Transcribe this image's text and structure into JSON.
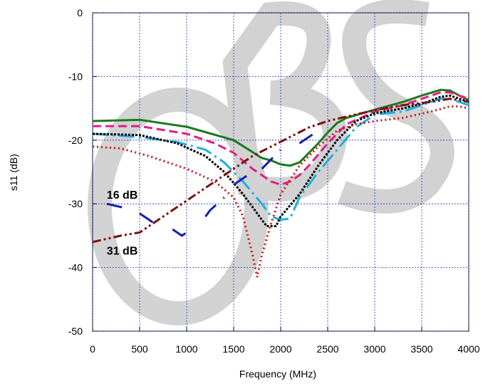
{
  "chart_data": {
    "type": "line",
    "x_label": "Frequency (MHz)",
    "y_label": "s11 (dB)",
    "xlim": [
      0,
      4000
    ],
    "ylim": [
      -50,
      0
    ],
    "xticks": [
      0,
      500,
      1000,
      1500,
      2000,
      2500,
      3000,
      3500,
      4000
    ],
    "yticks": [
      0,
      -10,
      -20,
      -30,
      -40,
      -50
    ],
    "grid": true,
    "annotations": [
      {
        "text": "16 dB",
        "x": 150,
        "y": -29.2
      },
      {
        "text": "31 dB",
        "x": 150,
        "y": -38
      }
    ],
    "series": [
      {
        "color": "#1a7a1a",
        "dash": "solid",
        "x": [
          0,
          500,
          1000,
          1500,
          1800,
          1900,
          2000,
          2100,
          2200,
          2300,
          2400,
          2500,
          2600,
          2700,
          3000,
          3300,
          3500,
          3700,
          3800,
          3900,
          4000
        ],
        "values": [
          -17,
          -16.8,
          -17.9,
          -20,
          -22.8,
          -23.2,
          -23.8,
          -24,
          -23.5,
          -22,
          -20.5,
          -18.8,
          -17.3,
          -16.5,
          -15.2,
          -14,
          -13,
          -12.1,
          -12.2,
          -13,
          -13.7
        ]
      },
      {
        "color": "#e0207f",
        "dash": "dashed",
        "x": [
          0,
          500,
          1000,
          1300,
          1500,
          1700,
          1900,
          2000,
          2100,
          2200,
          2300,
          2500,
          2700,
          3000,
          3300,
          3500,
          3700,
          3800,
          4000
        ],
        "values": [
          -17.8,
          -17.8,
          -19,
          -20.5,
          -22,
          -24.5,
          -26.5,
          -27,
          -26.5,
          -25.5,
          -24,
          -20.5,
          -17.5,
          -15.5,
          -14.5,
          -13.5,
          -12.5,
          -12.5,
          -13.5
        ]
      },
      {
        "color": "#1ab0e0",
        "dash": "dashdot",
        "x": [
          0,
          500,
          900,
          1200,
          1400,
          1600,
          1800,
          1900,
          2000,
          2100,
          2200,
          2400,
          2600,
          2800,
          3000,
          3300,
          3500,
          3700,
          3800,
          4000
        ],
        "values": [
          -19,
          -19.5,
          -20.3,
          -21.5,
          -23.5,
          -26.5,
          -30,
          -32,
          -32.5,
          -32.3,
          -29,
          -25,
          -21.5,
          -18,
          -16,
          -15.5,
          -14.5,
          -13.5,
          -13.5,
          -14.5
        ]
      },
      {
        "color": "#000000",
        "dash": "dotted",
        "x": [
          0,
          500,
          900,
          1200,
          1400,
          1600,
          1800,
          1850,
          1950,
          2000,
          2200,
          2400,
          2600,
          2800,
          3000,
          3300,
          3500,
          3700,
          3800,
          4000
        ],
        "values": [
          -19,
          -19.2,
          -20.5,
          -22.5,
          -25,
          -28.5,
          -32.5,
          -33.5,
          -33.5,
          -32,
          -28.5,
          -24,
          -20,
          -17,
          -15.8,
          -15,
          -14.3,
          -13.2,
          -13,
          -14
        ]
      },
      {
        "color": "#cc1111",
        "dash": "fine",
        "x": [
          0,
          300,
          600,
          1000,
          1300,
          1500,
          1600,
          1700,
          1750,
          1800,
          1900,
          2000,
          2200,
          2400,
          2600,
          2800,
          3000,
          3300,
          3600,
          3800,
          3900,
          4000
        ],
        "values": [
          -21,
          -21.3,
          -22.5,
          -24.5,
          -26.5,
          -29,
          -32,
          -38,
          -41.5,
          -38,
          -33,
          -28.5,
          -24,
          -21,
          -18.5,
          -17.5,
          -17,
          -16.5,
          -15.5,
          -14.7,
          -14.7,
          -15
        ]
      },
      {
        "color": "#1020b0",
        "dash": "longdash",
        "x": [
          150,
          300,
          400,
          450,
          500,
          600,
          700,
          780,
          850,
          950,
          1050,
          1120,
          1200,
          1250,
          1400,
          1450,
          1500,
          1650,
          1720,
          1800,
          2000,
          2100,
          2200,
          2400
        ],
        "values": [
          -30,
          -30.5,
          -31,
          null,
          -31.5,
          -32.5,
          -33.5,
          null,
          -34,
          -35,
          -34,
          null,
          -32,
          -31,
          -29,
          null,
          -27,
          -25.5,
          null,
          -24.5,
          -21.5,
          null,
          -20.5,
          -18.5
        ]
      },
      {
        "color": "#7a1010",
        "dash": "dashdotdot",
        "x": [
          0,
          300,
          500,
          700,
          900,
          1100,
          1300,
          1500,
          1700,
          1900,
          2100,
          2300,
          2500,
          2700,
          3000,
          3300,
          3600,
          3800,
          4000
        ],
        "values": [
          -36,
          -35,
          -34.5,
          -32.5,
          -30.5,
          -28.5,
          -26.5,
          -24.5,
          -22.5,
          -21,
          -19.5,
          -18,
          -17,
          -16.3,
          -15.3,
          -14.5,
          -14,
          -13.5,
          -14
        ]
      }
    ]
  }
}
